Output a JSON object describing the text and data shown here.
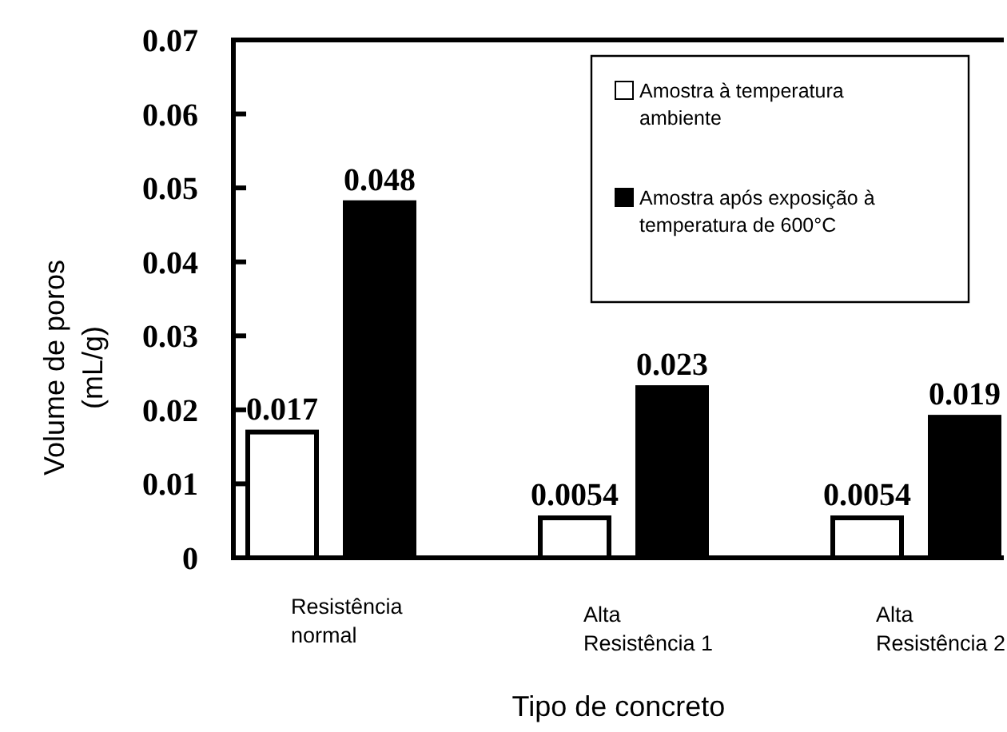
{
  "chart_data": {
    "type": "bar",
    "xlabel": "Tipo de concreto",
    "ylabel": "Volume de poros\n(mL/g)",
    "categories": [
      "Resistência\nnormal",
      "Alta\nResistência 1",
      "Alta\nResistência 2"
    ],
    "series": [
      {
        "name": "Amostra à temperatura ambiente",
        "color": "#ffffff",
        "values": [
          0.017,
          0.0054,
          0.0054
        ]
      },
      {
        "name": "Amostra após exposição à temperatura de 600°C",
        "color": "#000000",
        "values": [
          0.048,
          0.023,
          0.019
        ]
      }
    ],
    "ylim": [
      0,
      0.07
    ],
    "yticks": [
      0,
      0.01,
      0.02,
      0.03,
      0.04,
      0.05,
      0.06,
      0.07
    ],
    "data_labels": true,
    "legend": "top right"
  }
}
